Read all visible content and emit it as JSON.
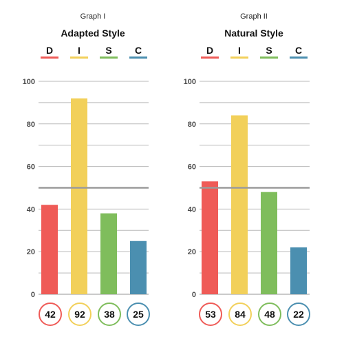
{
  "colors": {
    "D": "#ef5b57",
    "I": "#f2d05a",
    "S": "#7fbd5c",
    "C": "#4b8fb0",
    "grid": "#b9b9b9",
    "midline": "#9b9b9b",
    "axis_text": "#4a4a4a"
  },
  "chart_data": [
    {
      "type": "bar",
      "caption": "Graph I",
      "title": "Adapted Style",
      "categories": [
        "D",
        "I",
        "S",
        "C"
      ],
      "values": [
        42,
        92,
        38,
        25
      ],
      "value_labels": [
        "42",
        "92",
        "38",
        "25"
      ],
      "ylim": [
        0,
        100
      ],
      "yticks": [
        0,
        20,
        40,
        60,
        80,
        100
      ],
      "reference_line": 50,
      "grid": true,
      "legend": "top"
    },
    {
      "type": "bar",
      "caption": "Graph II",
      "title": "Natural Style",
      "categories": [
        "D",
        "I",
        "S",
        "C"
      ],
      "values": [
        53,
        84,
        48,
        22
      ],
      "value_labels": [
        "53",
        "84",
        "48",
        "22"
      ],
      "ylim": [
        0,
        100
      ],
      "yticks": [
        0,
        20,
        40,
        60,
        80,
        100
      ],
      "reference_line": 50,
      "grid": true,
      "legend": "top"
    }
  ]
}
